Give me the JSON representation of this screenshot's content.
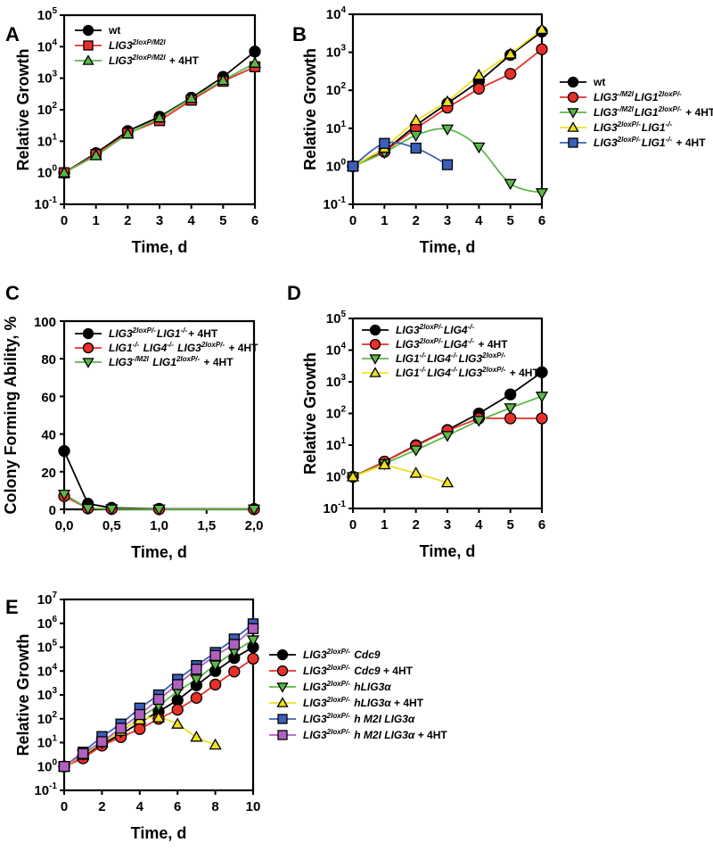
{
  "chart_data": [
    {
      "panel": "A",
      "type": "line",
      "yscale": "log",
      "xlabel": "Time, d",
      "ylabel": "Relative Growth",
      "xlim": [
        0,
        6
      ],
      "ylim_exp": [
        -1,
        5
      ],
      "x_ticks": [
        "0",
        "1",
        "2",
        "3",
        "4",
        "5",
        "6"
      ],
      "legend": "top-left",
      "series": [
        {
          "name": "wt",
          "name_parts": [
            {
              "t": "wt",
              "s": ""
            }
          ],
          "color": "#000000",
          "marker": "circle",
          "fill": "#000000",
          "x": [
            0,
            1,
            2,
            3,
            4,
            5,
            6
          ],
          "values": [
            1,
            4.2,
            21,
            60,
            240,
            1100,
            7000
          ]
        },
        {
          "name": "LIG3 2loxP/M2I",
          "name_parts": [
            {
              "t": "LIG3",
              "s": "2loxP/M2I",
              "i": true
            }
          ],
          "color": "#e8302a",
          "marker": "square",
          "fill": "#e8302a",
          "x": [
            0,
            1,
            2,
            3,
            4,
            5,
            6
          ],
          "values": [
            1,
            3.8,
            18,
            45,
            200,
            800,
            2300
          ]
        },
        {
          "name": "LIG3 2loxP/M2I + 4HT",
          "name_parts": [
            {
              "t": "LIG3",
              "s": "2loxP/M2I",
              "i": true
            },
            {
              "t": " + 4HT",
              "s": ""
            }
          ],
          "color": "#5cb848",
          "marker": "triangle-up",
          "fill": "#5cb848",
          "x": [
            0,
            1,
            2,
            3,
            4,
            5,
            6
          ],
          "values": [
            1,
            3.5,
            17,
            55,
            230,
            850,
            3000
          ]
        }
      ]
    },
    {
      "panel": "B",
      "type": "line",
      "yscale": "log",
      "xlabel": "Time, d",
      "ylabel": "Relative Growth",
      "xlim": [
        0,
        6
      ],
      "ylim_exp": [
        -1,
        4
      ],
      "x_ticks": [
        "0",
        "1",
        "2",
        "3",
        "4",
        "5",
        "6"
      ],
      "legend": "right-outside",
      "series": [
        {
          "name": "wt",
          "name_parts": [
            {
              "t": "wt",
              "s": ""
            }
          ],
          "color": "#000000",
          "marker": "circle",
          "fill": "#000000",
          "x": [
            0,
            1,
            2,
            3,
            4,
            5,
            6
          ],
          "values": [
            1,
            2.5,
            12,
            45,
            170,
            850,
            3500
          ]
        },
        {
          "name": "LIG3 -/M2I LIG1 2loxP/-",
          "name_parts": [
            {
              "t": "LIG3",
              "s": "-/M2I",
              "i": true
            },
            {
              "t": "LIG1",
              "s": "2loxP/-",
              "i": true
            }
          ],
          "color": "#e8302a",
          "marker": "circle",
          "fill": "#e8302a",
          "x": [
            0,
            1,
            2,
            3,
            4,
            5,
            6
          ],
          "values": [
            1,
            2.4,
            10,
            35,
            110,
            270,
            1200
          ]
        },
        {
          "name": "LIG3 -/M2I LIG1 2loxP/- + 4HT",
          "name_parts": [
            {
              "t": "LIG3",
              "s": "-/M2I",
              "i": true
            },
            {
              "t": "LIG1",
              "s": "2loxP/-",
              "i": true
            },
            {
              "t": " + 4HT",
              "s": ""
            }
          ],
          "color": "#5cb848",
          "marker": "triangle-down",
          "fill": "#5cb848",
          "smooth": true,
          "x": [
            0,
            1,
            2,
            3,
            4,
            5,
            6
          ],
          "values": [
            1,
            2.3,
            6.5,
            9.5,
            3.2,
            0.35,
            0.2
          ]
        },
        {
          "name": "LIG3 2loxP/- LIG1 -/-",
          "name_parts": [
            {
              "t": "LIG3",
              "s": "2loxP/-",
              "i": true
            },
            {
              "t": "LIG1",
              "s": "-/-",
              "i": true
            }
          ],
          "color": "#f0e020",
          "marker": "triangle-up",
          "fill": "#f0e020",
          "x": [
            0,
            1,
            2,
            3,
            4,
            5,
            6
          ],
          "values": [
            1,
            3,
            16,
            50,
            250,
            900,
            4000
          ]
        },
        {
          "name": "LIG3 2loxP/- LIG1 -/- + 4HT",
          "name_parts": [
            {
              "t": "LIG3",
              "s": "2loxP/-",
              "i": true
            },
            {
              "t": "LIG1",
              "s": "-/-",
              "i": true
            },
            {
              "t": " + 4HT",
              "s": ""
            }
          ],
          "color": "#3a5fb8",
          "marker": "square",
          "fill": "#3a5fb8",
          "smooth": true,
          "x": [
            0,
            1,
            2,
            3
          ],
          "values": [
            1,
            4,
            3,
            1.1
          ]
        }
      ]
    },
    {
      "panel": "C",
      "type": "line",
      "yscale": "linear",
      "xlabel": "Time, d",
      "ylabel": "Colony Forming Ability, %",
      "xlim": [
        0,
        2
      ],
      "ylim": [
        0,
        100
      ],
      "x_ticks": [
        "0,0",
        "0,5",
        "1,0",
        "1,5",
        "2,0"
      ],
      "y_ticks": [
        "0",
        "20",
        "40",
        "60",
        "80",
        "100"
      ],
      "legend": "top-left",
      "series": [
        {
          "name": "LIG3 2loxP/- LIG1 -/- + 4HT",
          "name_parts": [
            {
              "t": "LIG3",
              "s": "2loxP/-",
              "i": true
            },
            {
              "t": "LIG1",
              "s": "-/-",
              "i": true
            },
            {
              "t": "+ 4HT",
              "s": ""
            }
          ],
          "color": "#000000",
          "marker": "circle",
          "fill": "#000000",
          "x": [
            0,
            0.25,
            0.5,
            1.0,
            2.0
          ],
          "values": [
            31,
            3,
            0.8,
            0.3,
            0.2
          ]
        },
        {
          "name": "LIG1 -/- LIG4 -/- LIG3 2loxP/- + 4HT",
          "name_parts": [
            {
              "t": "LIG1",
              "s": "-/-",
              "i": true
            },
            {
              "t": " LIG4",
              "s": "-/-",
              "i": true
            },
            {
              "t": " LIG3",
              "s": "2loxP/-",
              "i": true
            },
            {
              "t": " + 4HT",
              "s": ""
            }
          ],
          "color": "#e8302a",
          "marker": "circle",
          "fill": "#e8302a",
          "x": [
            0,
            0.25,
            0.5,
            1.0,
            2.0
          ],
          "values": [
            7,
            0.5,
            0.2,
            0.1,
            0.1
          ]
        },
        {
          "name": "LIG3 -/M2I LIG1 2loxP/- + 4HT",
          "name_parts": [
            {
              "t": "LIG3",
              "s": "-/M2I",
              "i": true
            },
            {
              "t": " LIG1",
              "s": "2loxP/-",
              "i": true
            },
            {
              "t": " + 4HT",
              "s": ""
            }
          ],
          "color": "#5cb848",
          "marker": "triangle-down",
          "fill": "#5cb848",
          "x": [
            0,
            0.25,
            0.5,
            1.0,
            2.0
          ],
          "values": [
            8,
            0.5,
            0.2,
            0.1,
            0.1
          ]
        }
      ]
    },
    {
      "panel": "D",
      "type": "line",
      "yscale": "log",
      "xlabel": "Time, d",
      "ylabel": "Relative Growth",
      "xlim": [
        0,
        6
      ],
      "ylim_exp": [
        -1,
        5
      ],
      "x_ticks": [
        "0",
        "1",
        "2",
        "3",
        "4",
        "5",
        "6"
      ],
      "legend": "top-left",
      "series": [
        {
          "name": "LIG3 2loxP/- LIG4 -/-",
          "name_parts": [
            {
              "t": "LIG3",
              "s": "2loxP/-",
              "i": true
            },
            {
              "t": "LIG4",
              "s": "-/-",
              "i": true
            }
          ],
          "color": "#000000",
          "marker": "circle",
          "fill": "#000000",
          "x": [
            0,
            1,
            2,
            3,
            4,
            5,
            6
          ],
          "values": [
            1,
            3,
            10,
            30,
            100,
            400,
            2000
          ]
        },
        {
          "name": "LIG3 2loxP/- LIG4 -/- + 4HT",
          "name_parts": [
            {
              "t": "LIG3",
              "s": "2loxP/-",
              "i": true
            },
            {
              "t": "LIG4",
              "s": "-/-",
              "i": true
            },
            {
              "t": " + 4HT",
              "s": ""
            }
          ],
          "color": "#e8302a",
          "marker": "circle",
          "fill": "#e8302a",
          "x": [
            0,
            1,
            2,
            3,
            4,
            5,
            6
          ],
          "values": [
            1,
            3,
            9.5,
            29,
            70,
            70,
            70
          ]
        },
        {
          "name": "LIG1 -/- LIG4 -/- LIG3 2loxP/-",
          "name_parts": [
            {
              "t": "LIG1",
              "s": "-/-",
              "i": true
            },
            {
              "t": "LIG4",
              "s": "-/-",
              "i": true
            },
            {
              "t": "LIG3",
              "s": "2loxP/-",
              "i": true
            }
          ],
          "color": "#5cb848",
          "marker": "triangle-down",
          "fill": "#5cb848",
          "x": [
            0,
            1,
            2,
            3,
            4,
            5,
            6
          ],
          "values": [
            1,
            2.6,
            7,
            20,
            60,
            150,
            350
          ]
        },
        {
          "name": "LIG1 -/- LIG4 -/- LIG3 2loxP/- + 4HT",
          "name_parts": [
            {
              "t": "LIG1",
              "s": "-/-",
              "i": true
            },
            {
              "t": "LIG4",
              "s": "-/-",
              "i": true
            },
            {
              "t": "LIG3",
              "s": "2loxP/-",
              "i": true
            },
            {
              "t": " + 4HT",
              "s": ""
            }
          ],
          "color": "#f0e020",
          "marker": "triangle-up",
          "fill": "#f0e020",
          "x": [
            0,
            1,
            2,
            3
          ],
          "values": [
            1,
            2.4,
            1.3,
            0.65
          ]
        }
      ]
    },
    {
      "panel": "E",
      "type": "line",
      "yscale": "log",
      "xlabel": "Time, d",
      "ylabel": "Relative Growth",
      "xlim": [
        0,
        10
      ],
      "ylim_exp": [
        -1,
        7
      ],
      "x_ticks": [
        "0",
        "2",
        "4",
        "6",
        "8",
        "10"
      ],
      "legend": "right-outside",
      "series": [
        {
          "name": "LIG3 2loxP/- Cdc9",
          "name_parts": [
            {
              "t": "LIG3",
              "s": "2loxP/-",
              "i": true
            },
            {
              "t": " Cdc9",
              "s": "",
              "i": true
            }
          ],
          "color": "#000000",
          "marker": "circle",
          "fill": "#000000",
          "x": [
            0,
            1,
            2,
            3,
            4,
            5,
            6,
            7,
            8,
            9,
            10
          ],
          "values": [
            1,
            2.8,
            8.5,
            22,
            70,
            200,
            600,
            2500,
            10000,
            35000,
            100000
          ]
        },
        {
          "name": "LIG3 2loxP/- Cdc9 + 4HT",
          "name_parts": [
            {
              "t": "LIG3",
              "s": "2loxP/-",
              "i": true
            },
            {
              "t": " Cdc9",
              "s": "",
              "i": true
            },
            {
              "t": " + 4HT",
              "s": ""
            }
          ],
          "color": "#e8302a",
          "marker": "circle",
          "fill": "#e8302a",
          "x": [
            0,
            1,
            2,
            3,
            4,
            5,
            6,
            7,
            8,
            9,
            10
          ],
          "values": [
            1,
            2.2,
            7.5,
            17,
            37,
            100,
            240,
            750,
            2700,
            9500,
            33000
          ]
        },
        {
          "name": "LIG3 2loxP/- hLIG3α",
          "name_parts": [
            {
              "t": "LIG3",
              "s": "2loxP/-",
              "i": true
            },
            {
              "t": " hLIG3α",
              "s": "",
              "i": true
            }
          ],
          "color": "#5cb848",
          "marker": "triangle-down",
          "fill": "#5cb848",
          "x": [
            0,
            1,
            2,
            3,
            4,
            5,
            6,
            7,
            8,
            9,
            10
          ],
          "values": [
            1,
            3.2,
            10,
            28,
            110,
            350,
            1400,
            4500,
            18000,
            65000,
            200000
          ]
        },
        {
          "name": "LIG3 2loxP/- hLIG3α + 4HT",
          "name_parts": [
            {
              "t": "LIG3",
              "s": "2loxP/-",
              "i": true
            },
            {
              "t": " hLIG3α",
              "s": "",
              "i": true
            },
            {
              "t": " + 4HT",
              "s": ""
            }
          ],
          "color": "#f0e020",
          "marker": "triangle-up",
          "fill": "#f0e020",
          "smooth": true,
          "x": [
            0,
            1,
            2,
            3,
            4,
            5,
            6,
            7,
            8
          ],
          "values": [
            1,
            3,
            10,
            30,
            90,
            110,
            60,
            17,
            8
          ]
        },
        {
          "name": "LIG3 2loxP/- h M2I LIG3α",
          "name_parts": [
            {
              "t": "LIG3",
              "s": "2loxP/-",
              "i": true
            },
            {
              "t": " h M2I LIG3α",
              "s": "",
              "i": true
            }
          ],
          "color": "#3a5fb8",
          "marker": "square",
          "fill": "#3a5fb8",
          "x": [
            0,
            1,
            2,
            3,
            4,
            5,
            6,
            7,
            8,
            9,
            10
          ],
          "values": [
            1,
            4,
            18,
            60,
            280,
            1000,
            4500,
            17000,
            60000,
            220000,
            950000
          ]
        },
        {
          "name": "LIG3 2loxP/- h M2I LIG3α + 4HT",
          "name_parts": [
            {
              "t": "LIG3",
              "s": "2loxP/-",
              "i": true
            },
            {
              "t": " h M2I LIG3α",
              "s": "",
              "i": true
            },
            {
              "t": " + 4HT",
              "s": ""
            }
          ],
          "color": "#b060c0",
          "marker": "square",
          "fill": "#b060c0",
          "x": [
            0,
            1,
            2,
            3,
            4,
            5,
            6,
            7,
            8,
            9,
            10
          ],
          "values": [
            1,
            3.5,
            11,
            40,
            150,
            650,
            2700,
            12000,
            45000,
            130000,
            600000
          ]
        }
      ]
    }
  ]
}
